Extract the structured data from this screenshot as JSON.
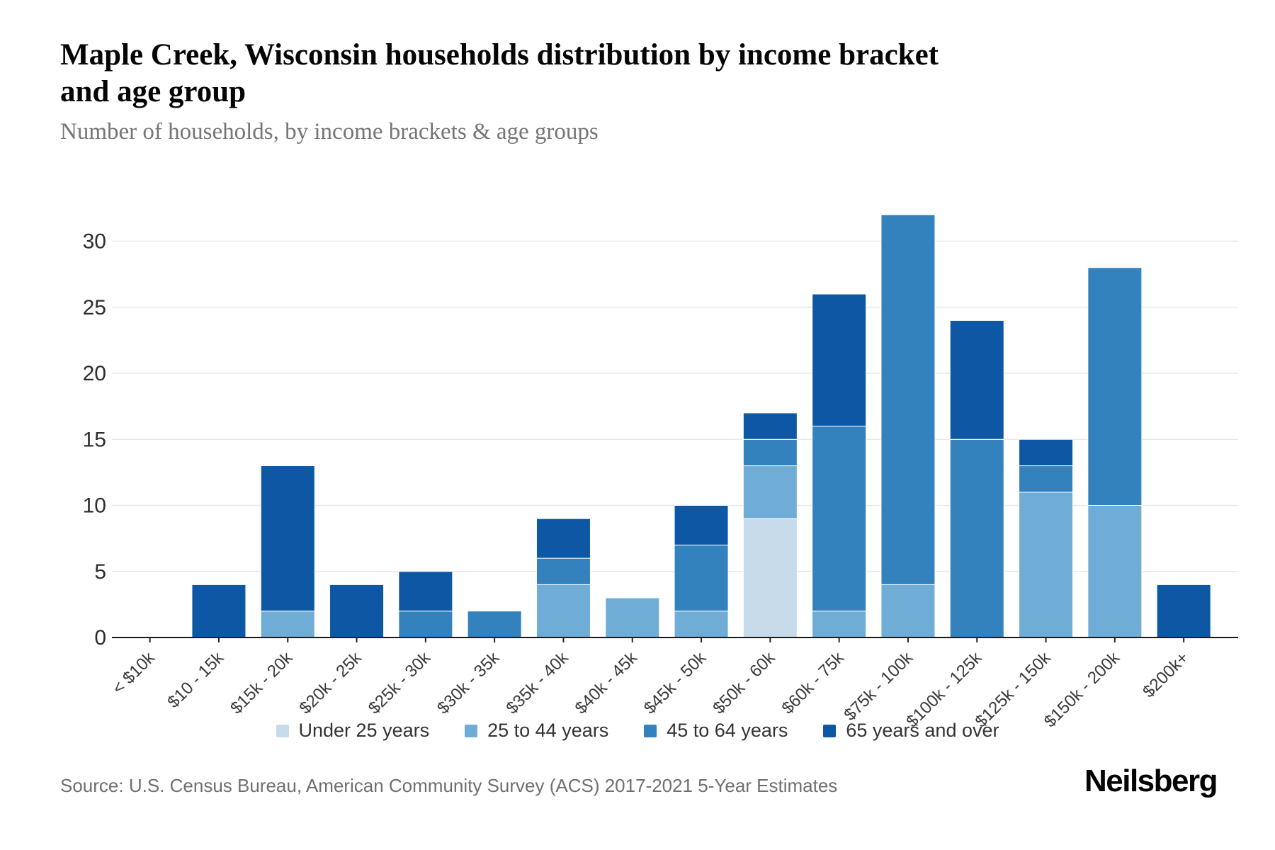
{
  "header": {
    "title": "Maple Creek, Wisconsin households distribution by income bracket and age group",
    "title_line1": "Maple Creek, Wisconsin households distribution by income bracket",
    "title_line2": "and age group",
    "subtitle": "Number of households, by income brackets & age groups"
  },
  "footer": {
    "source": "Source: U.S. Census Bureau, American Community Survey (ACS) 2017-2021 5-Year Estimates",
    "brand": "Neilsberg"
  },
  "colors": {
    "under_25": "#c8dbea",
    "age_25_44": "#6fadd6",
    "age_45_64": "#3381bd",
    "age_65_over": "#0d57a4",
    "gridline": "#e8e8e8",
    "axis_line": "#1a1a1a",
    "y_label": "#2d2d2d",
    "x_label": "#3a3a3a"
  },
  "chart_data": {
    "type": "bar",
    "stacked": true,
    "title": "Maple Creek, Wisconsin households distribution by income bracket and age group",
    "subtitle": "Number of households, by income brackets & age groups",
    "xlabel": "",
    "ylabel": "Number of households",
    "ylim": [
      0,
      32
    ],
    "yticks": [
      0,
      5,
      10,
      15,
      20,
      25,
      30
    ],
    "grid": true,
    "legend_position": "bottom",
    "categories": [
      "< $10k",
      "$10 - 15k",
      "$15k - 20k",
      "$20k - 25k",
      "$25k - 30k",
      "$30k - 35k",
      "$35k - 40k",
      "$40k - 45k",
      "$45k - 50k",
      "$50k - 60k",
      "$60k - 75k",
      "$75k - 100k",
      "$100k - 125k",
      "$125k - 150k",
      "$150k - 200k",
      "$200k+"
    ],
    "series": [
      {
        "name": "Under 25 years",
        "color": "#c8dbea",
        "values": [
          0,
          0,
          0,
          0,
          0,
          0,
          0,
          0,
          0,
          9,
          0,
          0,
          0,
          0,
          0,
          0
        ]
      },
      {
        "name": "25 to 44 years",
        "color": "#6fadd6",
        "values": [
          0,
          0,
          2,
          0,
          0,
          0,
          4,
          3,
          2,
          4,
          2,
          4,
          0,
          11,
          10,
          0
        ]
      },
      {
        "name": "45 to 64 years",
        "color": "#3381bd",
        "values": [
          0,
          0,
          0,
          0,
          2,
          2,
          2,
          0,
          5,
          2,
          14,
          28,
          15,
          2,
          18,
          0
        ]
      },
      {
        "name": "65 years and over",
        "color": "#0d57a4",
        "values": [
          0,
          4,
          11,
          4,
          3,
          0,
          3,
          0,
          3,
          2,
          10,
          0,
          9,
          2,
          0,
          4
        ]
      }
    ],
    "stack_totals": [
      0,
      4,
      13,
      4,
      5,
      2,
      9,
      3,
      10,
      17,
      26,
      32,
      24,
      15,
      28,
      4
    ]
  }
}
